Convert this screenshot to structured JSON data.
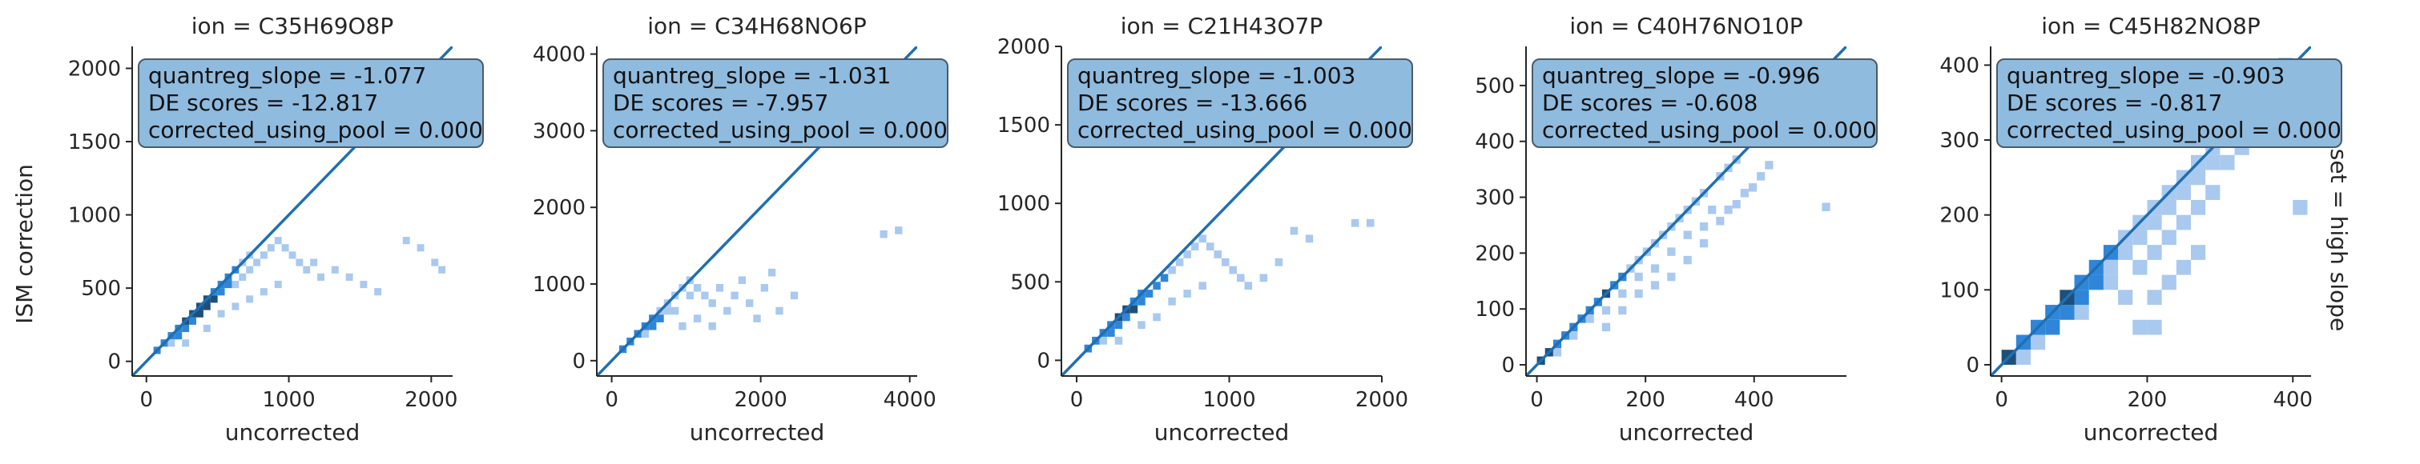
{
  "figure": {
    "ylabel": "ISM correction",
    "row_label": "set = high slope",
    "colors": {
      "line": "#1f6fb2",
      "cell_dark": "#1d4f7a",
      "cell_mid": "#2f86d9",
      "cell_light": "#a9c9ef",
      "box_fill": "#8fbbdf",
      "box_edge": "#4a5a6a"
    }
  },
  "chart_data": [
    {
      "type": "heatmap",
      "title": "ion = C35H69O8P",
      "xlabel": "uncorrected",
      "ylabel": "ISM correction",
      "xlim": [
        -100,
        2150
      ],
      "ylim": [
        -100,
        2150
      ],
      "xticks": [
        0,
        1000,
        2000
      ],
      "yticks": [
        0,
        500,
        1000,
        1500,
        2000
      ],
      "identity_line": true,
      "annotation": [
        "quantreg_slope = -1.077",
        "DE scores = -12.817",
        "corrected_using_pool = 0.000"
      ],
      "bin_width": 50,
      "cells": [
        [
          50,
          50,
          2
        ],
        [
          100,
          100,
          2
        ],
        [
          150,
          150,
          2
        ],
        [
          150,
          100,
          1
        ],
        [
          200,
          200,
          2
        ],
        [
          200,
          150,
          2
        ],
        [
          250,
          250,
          3
        ],
        [
          250,
          200,
          2
        ],
        [
          300,
          300,
          3
        ],
        [
          300,
          250,
          2
        ],
        [
          350,
          350,
          3
        ],
        [
          350,
          300,
          3
        ],
        [
          400,
          400,
          3
        ],
        [
          400,
          350,
          3
        ],
        [
          450,
          450,
          2
        ],
        [
          450,
          400,
          3
        ],
        [
          500,
          500,
          2
        ],
        [
          500,
          450,
          2
        ],
        [
          550,
          550,
          2
        ],
        [
          550,
          500,
          2
        ],
        [
          600,
          600,
          2
        ],
        [
          600,
          500,
          1
        ],
        [
          650,
          650,
          1
        ],
        [
          650,
          550,
          1
        ],
        [
          700,
          700,
          1
        ],
        [
          700,
          600,
          1
        ],
        [
          750,
          650,
          1
        ],
        [
          800,
          700,
          1
        ],
        [
          850,
          750,
          1
        ],
        [
          900,
          800,
          1
        ],
        [
          950,
          750,
          1
        ],
        [
          1000,
          700,
          1
        ],
        [
          1050,
          650,
          1
        ],
        [
          1100,
          600,
          1
        ],
        [
          1150,
          650,
          1
        ],
        [
          1200,
          550,
          1
        ],
        [
          1300,
          600,
          1
        ],
        [
          1400,
          550,
          1
        ],
        [
          1500,
          500,
          1
        ],
        [
          1600,
          450,
          1
        ],
        [
          1800,
          800,
          1
        ],
        [
          1900,
          750,
          1
        ],
        [
          2000,
          650,
          1
        ],
        [
          2050,
          600,
          1
        ],
        [
          600,
          350,
          1
        ],
        [
          700,
          400,
          1
        ],
        [
          800,
          450,
          1
        ],
        [
          900,
          500,
          1
        ],
        [
          250,
          100,
          1
        ],
        [
          400,
          200,
          1
        ],
        [
          500,
          300,
          1
        ]
      ]
    },
    {
      "type": "heatmap",
      "title": "ion = C34H68NO6P",
      "xlabel": "uncorrected",
      "ylabel": "",
      "xlim": [
        -200,
        4100
      ],
      "ylim": [
        -200,
        4100
      ],
      "xticks": [
        0,
        2000,
        4000
      ],
      "yticks": [
        0,
        1000,
        2000,
        3000,
        4000
      ],
      "identity_line": true,
      "annotation": [
        "quantreg_slope = -1.031",
        "DE scores = -7.957",
        "corrected_using_pool = 0.000"
      ],
      "bin_width": 100,
      "cells": [
        [
          100,
          100,
          2
        ],
        [
          200,
          200,
          2
        ],
        [
          300,
          300,
          2
        ],
        [
          400,
          400,
          2
        ],
        [
          400,
          300,
          1
        ],
        [
          500,
          500,
          2
        ],
        [
          500,
          400,
          2
        ],
        [
          600,
          600,
          1
        ],
        [
          600,
          500,
          2
        ],
        [
          700,
          700,
          1
        ],
        [
          700,
          600,
          1
        ],
        [
          800,
          800,
          1
        ],
        [
          800,
          600,
          1
        ],
        [
          900,
          900,
          1
        ],
        [
          1000,
          1000,
          1
        ],
        [
          1000,
          800,
          1
        ],
        [
          1100,
          900,
          1
        ],
        [
          1200,
          800,
          1
        ],
        [
          1300,
          700,
          1
        ],
        [
          1400,
          900,
          1
        ],
        [
          1500,
          600,
          1
        ],
        [
          1600,
          800,
          1
        ],
        [
          1700,
          1000,
          1
        ],
        [
          1800,
          700,
          1
        ],
        [
          1900,
          500,
          1
        ],
        [
          2000,
          900,
          1
        ],
        [
          2100,
          1100,
          1
        ],
        [
          2200,
          600,
          1
        ],
        [
          2400,
          800,
          1
        ],
        [
          3600,
          1600,
          1
        ],
        [
          3800,
          1650,
          1
        ],
        [
          900,
          400,
          1
        ],
        [
          1100,
          500,
          1
        ],
        [
          1300,
          400,
          1
        ]
      ]
    },
    {
      "type": "heatmap",
      "title": "ion = C21H43O7P",
      "xlabel": "uncorrected",
      "ylabel": "",
      "xlim": [
        -100,
        2000
      ],
      "ylim": [
        -100,
        2000
      ],
      "xticks": [
        0,
        1000,
        2000
      ],
      "yticks": [
        0,
        500,
        1000,
        1500,
        2000
      ],
      "identity_line": true,
      "annotation": [
        "quantreg_slope = -1.003",
        "DE scores = -13.666",
        "corrected_using_pool = 0.000"
      ],
      "bin_width": 50,
      "cells": [
        [
          50,
          50,
          2
        ],
        [
          100,
          100,
          2
        ],
        [
          150,
          150,
          2
        ],
        [
          150,
          100,
          1
        ],
        [
          200,
          200,
          2
        ],
        [
          200,
          150,
          2
        ],
        [
          250,
          250,
          3
        ],
        [
          250,
          200,
          2
        ],
        [
          300,
          300,
          3
        ],
        [
          300,
          250,
          2
        ],
        [
          350,
          350,
          2
        ],
        [
          350,
          300,
          3
        ],
        [
          400,
          400,
          2
        ],
        [
          400,
          350,
          2
        ],
        [
          450,
          400,
          2
        ],
        [
          500,
          450,
          2
        ],
        [
          550,
          500,
          2
        ],
        [
          600,
          550,
          1
        ],
        [
          650,
          600,
          1
        ],
        [
          700,
          650,
          1
        ],
        [
          750,
          700,
          1
        ],
        [
          800,
          750,
          1
        ],
        [
          850,
          700,
          1
        ],
        [
          900,
          650,
          1
        ],
        [
          950,
          600,
          1
        ],
        [
          1000,
          550,
          1
        ],
        [
          1050,
          500,
          1
        ],
        [
          1100,
          450,
          1
        ],
        [
          1200,
          500,
          1
        ],
        [
          1300,
          600,
          1
        ],
        [
          1400,
          800,
          1
        ],
        [
          1500,
          750,
          1
        ],
        [
          1800,
          850,
          1
        ],
        [
          1900,
          850,
          1
        ],
        [
          600,
          350,
          1
        ],
        [
          700,
          400,
          1
        ],
        [
          800,
          450,
          1
        ],
        [
          250,
          100,
          1
        ],
        [
          400,
          200,
          1
        ],
        [
          500,
          250,
          1
        ]
      ]
    },
    {
      "type": "heatmap",
      "title": "ion = C40H76NO10P",
      "xlabel": "uncorrected",
      "ylabel": "",
      "xlim": [
        -20,
        570
      ],
      "ylim": [
        -20,
        570
      ],
      "xticks": [
        0,
        200,
        400
      ],
      "yticks": [
        0,
        100,
        200,
        300,
        400,
        500
      ],
      "identity_line": true,
      "annotation": [
        "quantreg_slope = -0.996",
        "DE scores = -0.608",
        "corrected_using_pool = 0.000"
      ],
      "bin_width": 15,
      "cells": [
        [
          0,
          0,
          3
        ],
        [
          15,
          15,
          3
        ],
        [
          30,
          30,
          2
        ],
        [
          45,
          45,
          2
        ],
        [
          60,
          60,
          2
        ],
        [
          75,
          75,
          2
        ],
        [
          90,
          90,
          2
        ],
        [
          105,
          105,
          2
        ],
        [
          120,
          120,
          3
        ],
        [
          135,
          135,
          2
        ],
        [
          150,
          150,
          2
        ],
        [
          165,
          165,
          1
        ],
        [
          180,
          180,
          1
        ],
        [
          195,
          195,
          1
        ],
        [
          210,
          210,
          1
        ],
        [
          225,
          225,
          1
        ],
        [
          240,
          240,
          1
        ],
        [
          255,
          255,
          1
        ],
        [
          270,
          270,
          1
        ],
        [
          285,
          285,
          1
        ],
        [
          300,
          300,
          1
        ],
        [
          330,
          330,
          1
        ],
        [
          345,
          345,
          1
        ],
        [
          30,
          15,
          1
        ],
        [
          60,
          45,
          1
        ],
        [
          90,
          75,
          1
        ],
        [
          120,
          90,
          1
        ],
        [
          150,
          120,
          1
        ],
        [
          180,
          150,
          1
        ],
        [
          210,
          165,
          1
        ],
        [
          240,
          195,
          1
        ],
        [
          270,
          225,
          1
        ],
        [
          300,
          240,
          1
        ],
        [
          315,
          270,
          1
        ],
        [
          120,
          60,
          1
        ],
        [
          150,
          90,
          1
        ],
        [
          180,
          120,
          1
        ],
        [
          210,
          135,
          1
        ],
        [
          240,
          150,
          1
        ],
        [
          270,
          180,
          1
        ],
        [
          300,
          210,
          1
        ],
        [
          330,
          250,
          1
        ],
        [
          345,
          270,
          1
        ],
        [
          360,
          280,
          1
        ],
        [
          375,
          300,
          1
        ],
        [
          390,
          310,
          1
        ],
        [
          405,
          330,
          1
        ],
        [
          420,
          350,
          1
        ],
        [
          525,
          275,
          1
        ],
        [
          360,
          360,
          1
        ],
        [
          405,
          405,
          1
        ],
        [
          450,
          450,
          1
        ]
      ]
    },
    {
      "type": "heatmap",
      "title": "ion = C45H82NO8P",
      "xlabel": "uncorrected",
      "ylabel": "",
      "xlim": [
        -15,
        425
      ],
      "ylim": [
        -15,
        425
      ],
      "xticks": [
        0,
        200,
        400
      ],
      "yticks": [
        0,
        100,
        200,
        300,
        400
      ],
      "identity_line": true,
      "annotation": [
        "quantreg_slope = -0.903",
        "DE scores = -0.817",
        "corrected_using_pool = 0.000"
      ],
      "bin_width": 20,
      "cells": [
        [
          0,
          0,
          3
        ],
        [
          20,
          20,
          2
        ],
        [
          40,
          40,
          2
        ],
        [
          60,
          60,
          2
        ],
        [
          80,
          80,
          3
        ],
        [
          100,
          100,
          2
        ],
        [
          120,
          120,
          2
        ],
        [
          140,
          140,
          2
        ],
        [
          160,
          160,
          1
        ],
        [
          180,
          180,
          1
        ],
        [
          200,
          200,
          1
        ],
        [
          220,
          220,
          1
        ],
        [
          240,
          240,
          1
        ],
        [
          260,
          260,
          1
        ],
        [
          280,
          280,
          1
        ],
        [
          300,
          300,
          1
        ],
        [
          320,
          320,
          1
        ],
        [
          340,
          340,
          1
        ],
        [
          360,
          360,
          1
        ],
        [
          380,
          390,
          1
        ],
        [
          20,
          0,
          1
        ],
        [
          40,
          20,
          1
        ],
        [
          60,
          40,
          2
        ],
        [
          80,
          60,
          2
        ],
        [
          100,
          80,
          2
        ],
        [
          120,
          100,
          2
        ],
        [
          140,
          120,
          1
        ],
        [
          160,
          140,
          1
        ],
        [
          180,
          160,
          1
        ],
        [
          200,
          180,
          1
        ],
        [
          220,
          200,
          1
        ],
        [
          240,
          220,
          1
        ],
        [
          260,
          240,
          1
        ],
        [
          280,
          260,
          1
        ],
        [
          100,
          60,
          1
        ],
        [
          140,
          100,
          1
        ],
        [
          160,
          80,
          1
        ],
        [
          180,
          120,
          1
        ],
        [
          200,
          140,
          1
        ],
        [
          220,
          160,
          1
        ],
        [
          240,
          180,
          1
        ],
        [
          260,
          200,
          1
        ],
        [
          280,
          220,
          1
        ],
        [
          300,
          260,
          1
        ],
        [
          320,
          280,
          1
        ],
        [
          200,
          80,
          1
        ],
        [
          220,
          100,
          1
        ],
        [
          240,
          120,
          1
        ],
        [
          260,
          140,
          1
        ],
        [
          180,
          40,
          1
        ],
        [
          200,
          40,
          1
        ],
        [
          400,
          200,
          1
        ],
        [
          400,
          300,
          1
        ]
      ]
    }
  ]
}
